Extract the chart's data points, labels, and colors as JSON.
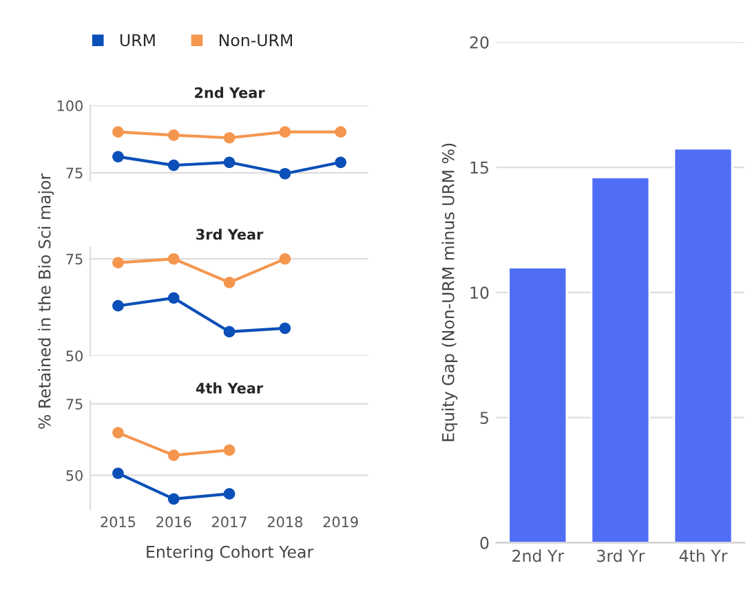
{
  "chart_data": [
    {
      "type": "line",
      "title": "2nd Year",
      "categories": [
        "2015",
        "2016",
        "2017",
        "2018",
        "2019"
      ],
      "series": [
        {
          "name": "URM",
          "color": "#0b4fb8",
          "values": [
            81.0,
            77.8,
            78.9,
            74.7,
            78.9
          ]
        },
        {
          "name": "Non-URM",
          "color": "#f5964f",
          "values": [
            90.2,
            89.0,
            88.0,
            90.2,
            90.2
          ]
        }
      ],
      "ylim": [
        72,
        100
      ],
      "yticks": [
        75,
        100
      ],
      "grid": "y",
      "tick_labels": "y",
      "legend": "top",
      "marker": "circle"
    },
    {
      "type": "line",
      "title": "3rd Year",
      "ylabel": "% Retained in the Bio Sci major",
      "categories": [
        "2015",
        "2016",
        "2017",
        "2018",
        "2019"
      ],
      "series": [
        {
          "color": "#0b4fb8",
          "values": [
            62.9,
            64.9,
            56.2,
            57.1,
            null
          ]
        },
        {
          "color": "#f5964f",
          "values": [
            74.0,
            75.0,
            68.9,
            75.0,
            null
          ]
        }
      ],
      "ylim": [
        50,
        78
      ],
      "yticks": [
        50,
        75
      ],
      "grid": "y",
      "tick_labels": "y",
      "marker": "circle"
    },
    {
      "type": "line",
      "title": "4th Year",
      "xlabel": "Entering Cohort Year",
      "categories": [
        "2015",
        "2016",
        "2017",
        "2018",
        "2019"
      ],
      "series": [
        {
          "color": "#0b4fb8",
          "values": [
            50.7,
            41.7,
            43.5,
            null,
            null
          ]
        },
        {
          "color": "#f5964f",
          "values": [
            64.9,
            57.0,
            58.8,
            null,
            null
          ]
        }
      ],
      "ylim": [
        38,
        76
      ],
      "yticks": [
        50,
        75
      ],
      "grid": "y",
      "marker": "circle"
    },
    {
      "type": "bar",
      "ylabel": "Equity Gap (Non-URM minus URM %)",
      "categories": [
        "2nd Yr",
        "3rd Yr",
        "4th Yr"
      ],
      "values": [
        11.0,
        14.6,
        15.75
      ],
      "color": "#4f6df5",
      "ylim": [
        0,
        20
      ],
      "yticks": [
        0,
        5,
        10,
        15,
        20
      ],
      "grid": "y"
    }
  ]
}
